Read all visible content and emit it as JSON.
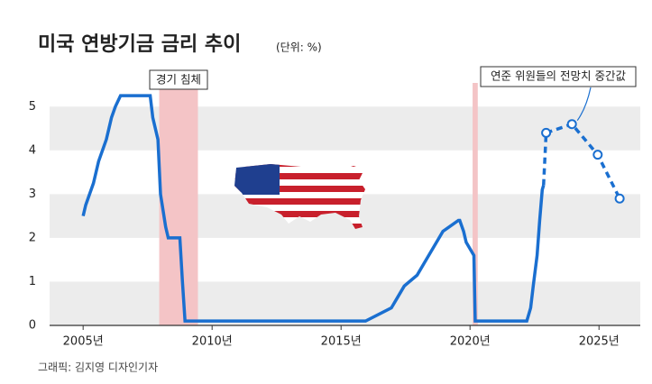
{
  "chart_data": {
    "type": "line",
    "title": "미국 연방기금 금리 추이",
    "subtitle": "(단위: %)",
    "source": "그래픽: 김지영 디자인기자",
    "xlim": [
      2003.7,
      2026.6
    ],
    "xticks": [
      {
        "value": 2005,
        "label": "2005년"
      },
      {
        "value": 2010,
        "label": "2010년"
      },
      {
        "value": 2015,
        "label": "2015년"
      },
      {
        "value": 2020,
        "label": "2020년"
      },
      {
        "value": 2025,
        "label": "2025년"
      }
    ],
    "ylim": [
      0,
      5.5
    ],
    "yticks": [
      0,
      1,
      2,
      3,
      4,
      5
    ],
    "banded_grid": true,
    "shaded_ranges": [
      [
        2007.95,
        2009.45
      ],
      [
        2020.1,
        2020.3
      ]
    ],
    "shade_color": "#f4c4c6",
    "series": [
      {
        "color": "#1a6fd0",
        "x": [
          2005.0,
          2005.1,
          2005.25,
          2005.4,
          2005.5,
          2005.6,
          2005.75,
          2005.9,
          2006.0,
          2006.1,
          2006.25,
          2006.45,
          2007.6,
          2007.7,
          2007.8,
          2007.9,
          2008.0,
          2008.2,
          2008.3,
          2008.75,
          2008.85,
          2008.95,
          2015.95,
          2016.95,
          2017.2,
          2017.45,
          2017.95,
          2018.2,
          2018.45,
          2018.7,
          2018.95,
          2019.55,
          2019.6,
          2019.75,
          2019.85,
          2020.15,
          2020.2,
          2022.2,
          2022.35,
          2022.45,
          2022.6,
          2022.7,
          2022.8,
          2022.85
        ],
        "values": [
          2.5,
          2.75,
          3.0,
          3.25,
          3.5,
          3.75,
          4.0,
          4.25,
          4.5,
          4.75,
          5.0,
          5.25,
          5.25,
          4.75,
          4.5,
          4.25,
          3.0,
          2.25,
          2.0,
          2.0,
          1.0,
          0.1,
          0.1,
          0.4,
          0.65,
          0.9,
          1.15,
          1.4,
          1.65,
          1.9,
          2.15,
          2.4,
          2.4,
          2.15,
          1.9,
          1.6,
          0.1,
          0.1,
          0.4,
          0.9,
          1.6,
          2.4,
          3.1,
          3.2
        ]
      },
      {
        "color": "#1a6fd0",
        "dashed": true,
        "markers": true,
        "x": [
          2022.95,
          2023.95,
          2024.95,
          2025.8
        ],
        "values": [
          4.4,
          4.6,
          3.9,
          2.9
        ]
      }
    ],
    "annotations": [
      {
        "text": "경기 침체"
      },
      {
        "text": "연준 위원들의 전망치 중간값"
      }
    ]
  }
}
